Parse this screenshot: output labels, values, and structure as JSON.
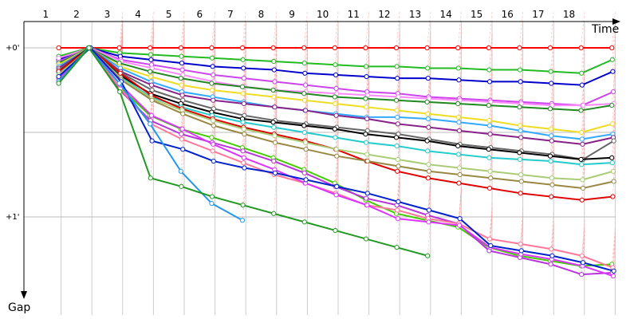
{
  "chart_data": {
    "type": "line",
    "x_title": "Time",
    "y_title": "Gap",
    "laps": [
      "1",
      "2",
      "3",
      "4",
      "5",
      "6",
      "7",
      "8",
      "9",
      "10",
      "11",
      "12",
      "13",
      "14",
      "15",
      "16",
      "17",
      "18"
    ],
    "gap_ticks": [
      "+0'",
      "+1'"
    ],
    "ylim": [
      -0.1,
      1.35
    ],
    "grid": true,
    "series": [
      {
        "color": "#ff0000",
        "values": [
          0.0,
          0.0,
          0.0,
          0.0,
          0.0,
          0.0,
          0.0,
          0.0,
          0.0,
          0.0,
          0.0,
          0.0,
          0.0,
          0.0,
          0.0,
          0.0,
          0.0,
          0.0,
          0.0
        ]
      },
      {
        "color": "#22bb22",
        "values": [
          0.05,
          0.0,
          0.03,
          0.04,
          0.05,
          0.06,
          0.07,
          0.08,
          0.09,
          0.1,
          0.11,
          0.11,
          0.12,
          0.12,
          0.13,
          0.13,
          0.14,
          0.15,
          0.07
        ]
      },
      {
        "color": "#0000cc",
        "values": [
          0.07,
          0.0,
          0.05,
          0.07,
          0.09,
          0.11,
          0.12,
          0.13,
          0.15,
          0.16,
          0.17,
          0.18,
          0.18,
          0.19,
          0.2,
          0.2,
          0.21,
          0.22,
          0.14
        ]
      },
      {
        "color": "#cc44ee",
        "values": [
          0.08,
          0.0,
          0.07,
          0.1,
          0.13,
          0.16,
          0.18,
          0.2,
          0.22,
          0.24,
          0.26,
          0.27,
          0.29,
          0.3,
          0.31,
          0.32,
          0.33,
          0.34,
          0.26
        ]
      },
      {
        "color": "#ff88ff",
        "values": [
          0.06,
          0.0,
          0.08,
          0.12,
          0.16,
          0.2,
          0.23,
          0.25,
          0.26,
          0.27,
          0.28,
          0.29,
          0.3,
          0.31,
          0.32,
          0.33,
          0.34,
          0.34,
          0.33
        ]
      },
      {
        "color": "#228822",
        "values": [
          0.09,
          0.0,
          0.09,
          0.14,
          0.18,
          0.21,
          0.23,
          0.25,
          0.27,
          0.29,
          0.3,
          0.31,
          0.32,
          0.33,
          0.34,
          0.35,
          0.36,
          0.37,
          0.34
        ]
      },
      {
        "color": "#eedd22",
        "values": [
          0.1,
          0.0,
          0.11,
          0.17,
          0.22,
          0.25,
          0.27,
          0.29,
          0.31,
          0.33,
          0.35,
          0.37,
          0.39,
          0.41,
          0.43,
          0.46,
          0.48,
          0.5,
          0.45
        ]
      },
      {
        "color": "#33aaff",
        "values": [
          0.11,
          0.0,
          0.12,
          0.2,
          0.26,
          0.29,
          0.32,
          0.35,
          0.37,
          0.39,
          0.41,
          0.41,
          0.42,
          0.44,
          0.46,
          0.49,
          0.52,
          0.54,
          0.51
        ]
      },
      {
        "color": "#882288",
        "values": [
          0.12,
          0.0,
          0.14,
          0.22,
          0.28,
          0.31,
          0.33,
          0.35,
          0.37,
          0.4,
          0.42,
          0.45,
          0.47,
          0.49,
          0.51,
          0.53,
          0.55,
          0.57,
          0.53
        ]
      },
      {
        "color": "#666666",
        "values": [
          0.13,
          0.0,
          0.15,
          0.25,
          0.31,
          0.36,
          0.4,
          0.43,
          0.45,
          0.47,
          0.49,
          0.51,
          0.54,
          0.57,
          0.59,
          0.61,
          0.63,
          0.66,
          0.55
        ]
      },
      {
        "color": "#000000",
        "values": [
          0.14,
          0.0,
          0.16,
          0.27,
          0.33,
          0.38,
          0.42,
          0.44,
          0.46,
          0.48,
          0.51,
          0.53,
          0.55,
          0.58,
          0.6,
          0.62,
          0.64,
          0.66,
          0.65
        ]
      },
      {
        "color": "#22cccc",
        "values": [
          0.15,
          0.0,
          0.17,
          0.29,
          0.35,
          0.4,
          0.44,
          0.47,
          0.5,
          0.53,
          0.56,
          0.58,
          0.61,
          0.63,
          0.65,
          0.66,
          0.67,
          0.69,
          0.68
        ]
      },
      {
        "color": "#e00000",
        "values": [
          0.14,
          0.0,
          0.15,
          0.28,
          0.36,
          0.42,
          0.47,
          0.51,
          0.55,
          0.6,
          0.67,
          0.73,
          0.77,
          0.8,
          0.83,
          0.86,
          0.88,
          0.9,
          0.88
        ]
      },
      {
        "color": "#aacc77",
        "values": [
          0.16,
          0.0,
          0.18,
          0.3,
          0.37,
          0.43,
          0.48,
          0.52,
          0.56,
          0.6,
          0.63,
          0.66,
          0.69,
          0.71,
          0.73,
          0.75,
          0.77,
          0.78,
          0.73
        ]
      },
      {
        "color": "#998844",
        "values": [
          0.17,
          0.0,
          0.19,
          0.31,
          0.39,
          0.46,
          0.51,
          0.56,
          0.6,
          0.64,
          0.67,
          0.7,
          0.73,
          0.75,
          0.77,
          0.79,
          0.81,
          0.83,
          0.79
        ]
      },
      {
        "color": "#44cc00",
        "values": [
          0.18,
          0.0,
          0.23,
          0.4,
          0.48,
          0.53,
          0.59,
          0.65,
          0.72,
          0.8,
          0.9,
          0.98,
          1.02,
          1.06,
          1.18,
          1.23,
          1.26,
          1.29,
          1.28
        ]
      },
      {
        "color": "#bb33dd",
        "values": [
          0.2,
          0.0,
          0.25,
          0.43,
          0.51,
          0.56,
          0.61,
          0.67,
          0.74,
          0.82,
          0.89,
          0.93,
          0.99,
          1.04,
          1.2,
          1.24,
          1.28,
          1.34,
          1.33
        ]
      },
      {
        "color": "#ff7799",
        "values": [
          0.19,
          0.0,
          0.24,
          0.45,
          0.54,
          0.61,
          0.68,
          0.75,
          0.8,
          0.86,
          0.93,
          0.96,
          1.01,
          1.04,
          1.13,
          1.16,
          1.19,
          1.23,
          1.3
        ]
      },
      {
        "color": "#dd33ff",
        "values": [
          0.18,
          0.0,
          0.22,
          0.4,
          0.48,
          0.57,
          0.65,
          0.72,
          0.8,
          0.87,
          0.93,
          1.01,
          1.03,
          1.05,
          1.18,
          1.22,
          1.25,
          1.29,
          1.35
        ]
      },
      {
        "color": "#0022cc",
        "values": [
          0.17,
          0.0,
          0.2,
          0.55,
          0.6,
          0.67,
          0.71,
          0.74,
          0.78,
          0.82,
          0.86,
          0.91,
          0.96,
          1.01,
          1.17,
          1.2,
          1.23,
          1.27,
          1.32
        ]
      },
      {
        "color": "#2299ee",
        "values": [
          0.2,
          0.0,
          0.21,
          0.45,
          0.73,
          0.92,
          1.02
        ]
      },
      {
        "color": "#229922",
        "values": [
          0.21,
          0.0,
          0.26,
          0.77,
          0.82,
          0.88,
          0.93,
          0.98,
          1.03,
          1.08,
          1.13,
          1.18,
          1.23
        ]
      }
    ]
  }
}
